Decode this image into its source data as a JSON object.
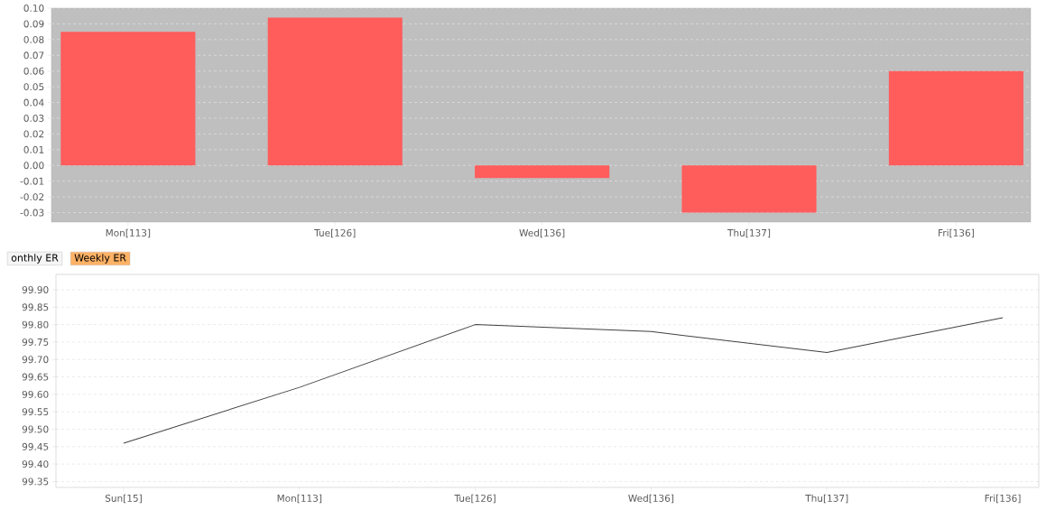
{
  "chart_data": [
    {
      "type": "bar",
      "categories": [
        "Mon[113]",
        "Tue[126]",
        "Wed[136]",
        "Thu[137]",
        "Fri[136]"
      ],
      "values": [
        0.085,
        0.094,
        -0.008,
        -0.03,
        0.06
      ],
      "color": "#ff5c5c",
      "ylim": [
        -0.036,
        0.1
      ],
      "yticks": [
        {
          "value": 0.1,
          "label": "0.10"
        },
        {
          "value": 0.09,
          "label": "0.09"
        },
        {
          "value": 0.08,
          "label": "0.08"
        },
        {
          "value": 0.07,
          "label": "0.07"
        },
        {
          "value": 0.06,
          "label": "0.06"
        },
        {
          "value": 0.05,
          "label": "0.05"
        },
        {
          "value": 0.04,
          "label": "0.04"
        },
        {
          "value": 0.03,
          "label": "0.03"
        },
        {
          "value": 0.02,
          "label": "0.02"
        },
        {
          "value": 0.01,
          "label": "0.01"
        },
        {
          "value": 0,
          "label": "0.00"
        },
        {
          "value": -0.01,
          "label": "-0.01"
        },
        {
          "value": -0.02,
          "label": "-0.02"
        },
        {
          "value": -0.03,
          "label": "-0.03"
        }
      ],
      "grid": "y"
    },
    {
      "type": "line",
      "categories": [
        "Sun[15]",
        "Mon[113]",
        "Tue[126]",
        "Wed[136]",
        "Thu[137]",
        "Fri[136]"
      ],
      "values": [
        99.46,
        99.62,
        99.8,
        99.78,
        99.72,
        99.82
      ],
      "color": "#404040",
      "ylim": [
        99.333,
        99.944
      ],
      "yticks": [
        {
          "value": 99.35,
          "label": "99.35"
        },
        {
          "value": 99.4,
          "label": "99.40"
        },
        {
          "value": 99.45,
          "label": "99.45"
        },
        {
          "value": 99.5,
          "label": "99.50"
        },
        {
          "value": 99.55,
          "label": "99.55"
        },
        {
          "value": 99.6,
          "label": "99.60"
        },
        {
          "value": 99.65,
          "label": "99.65"
        },
        {
          "value": 99.7,
          "label": "99.70"
        },
        {
          "value": 99.75,
          "label": "99.75"
        },
        {
          "value": 99.8,
          "label": "99.80"
        },
        {
          "value": 99.85,
          "label": "99.85"
        },
        {
          "value": 99.9,
          "label": "99.90"
        }
      ],
      "grid": "y",
      "annotations": [
        "onthly ER",
        "Weekly ER"
      ]
    }
  ]
}
